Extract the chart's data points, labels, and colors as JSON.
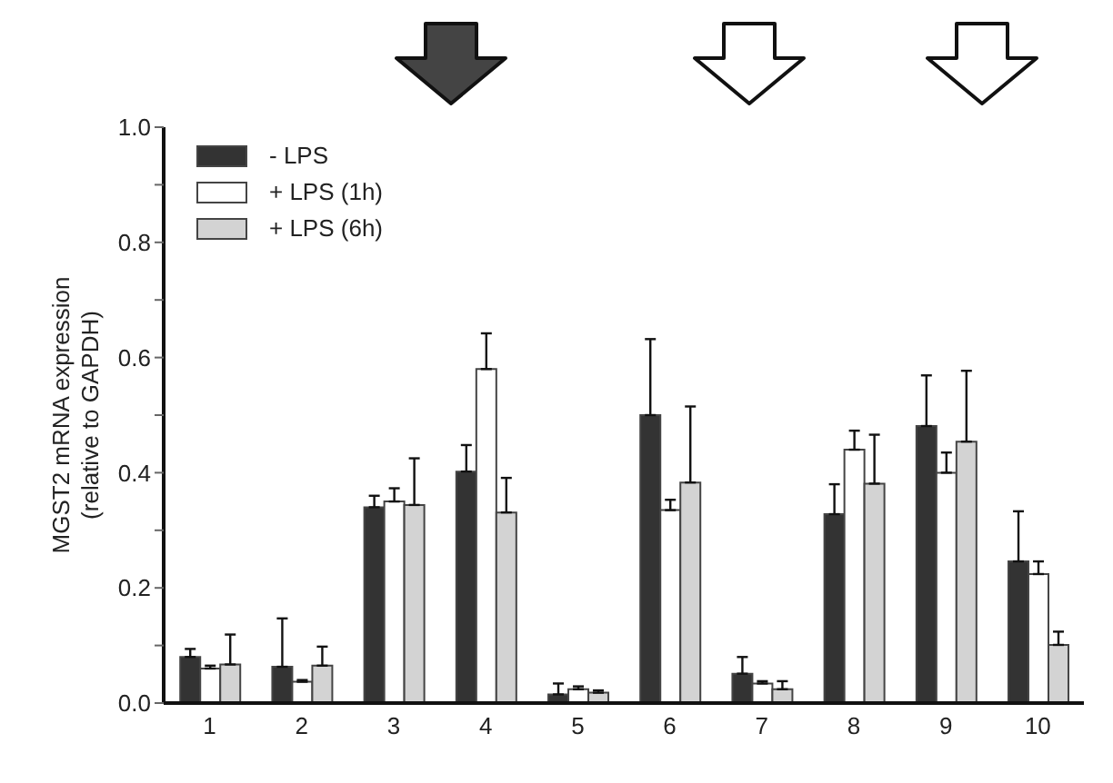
{
  "chart_data": {
    "type": "bar",
    "ylabel": "MGST2 mRNA expression\n(relative to GAPDH)",
    "categories": [
      "1",
      "2",
      "3",
      "4",
      "5",
      "6",
      "7",
      "8",
      "9",
      "10"
    ],
    "series": [
      {
        "name": "- LPS",
        "color": "#333333",
        "values": [
          0.08,
          0.063,
          0.34,
          0.402,
          0.015,
          0.5,
          0.051,
          0.328,
          0.481,
          0.246
        ],
        "errors": [
          [
            0.08,
            0.094
          ],
          [
            0.063,
            0.147
          ],
          [
            0.34,
            0.36
          ],
          [
            0.402,
            0.448
          ],
          [
            0.015,
            0.034
          ],
          [
            0.5,
            0.632
          ],
          [
            0.051,
            0.08
          ],
          [
            0.328,
            0.38
          ],
          [
            0.481,
            0.569
          ],
          [
            0.246,
            0.333
          ]
        ]
      },
      {
        "name": "+ LPS (1h)",
        "color": "#ffffff",
        "values": [
          0.06,
          0.037,
          0.35,
          0.58,
          0.024,
          0.335,
          0.034,
          0.44,
          0.4,
          0.224
        ],
        "errors": [
          [
            0.06,
            0.065
          ],
          [
            0.037,
            0.04
          ],
          [
            0.35,
            0.373
          ],
          [
            0.58,
            0.642
          ],
          [
            0.024,
            0.029
          ],
          [
            0.335,
            0.353
          ],
          [
            0.034,
            0.038
          ],
          [
            0.44,
            0.473
          ],
          [
            0.4,
            0.435
          ],
          [
            0.224,
            0.246
          ]
        ]
      },
      {
        "name": "+ LPS (6h)",
        "color": "#d3d3d3",
        "values": [
          0.067,
          0.065,
          0.344,
          0.331,
          0.018,
          0.383,
          0.024,
          0.381,
          0.454,
          0.101
        ],
        "errors": [
          [
            0.067,
            0.119
          ],
          [
            0.065,
            0.098
          ],
          [
            0.344,
            0.425
          ],
          [
            0.331,
            0.391
          ],
          [
            0.018,
            0.022
          ],
          [
            0.383,
            0.515
          ],
          [
            0.024,
            0.038
          ],
          [
            0.381,
            0.466
          ],
          [
            0.454,
            0.577
          ],
          [
            0.101,
            0.124
          ]
        ]
      }
    ],
    "ylim": [
      0,
      1
    ],
    "yticks": [
      {
        "value": 0,
        "label": "0.0"
      },
      {
        "value": 0.1,
        "label": null
      },
      {
        "value": 0.2,
        "label": "0.2"
      },
      {
        "value": 0.3,
        "label": null
      },
      {
        "value": 0.4,
        "label": "0.4"
      },
      {
        "value": 0.5,
        "label": null
      },
      {
        "value": 0.6,
        "label": "0.6"
      },
      {
        "value": 0.7,
        "label": null
      },
      {
        "value": 0.8,
        "label": "0.8"
      },
      {
        "value": 0.9,
        "label": null
      },
      {
        "value": 1,
        "label": "1.0"
      }
    ],
    "legend": "top left",
    "grid": false
  }
}
